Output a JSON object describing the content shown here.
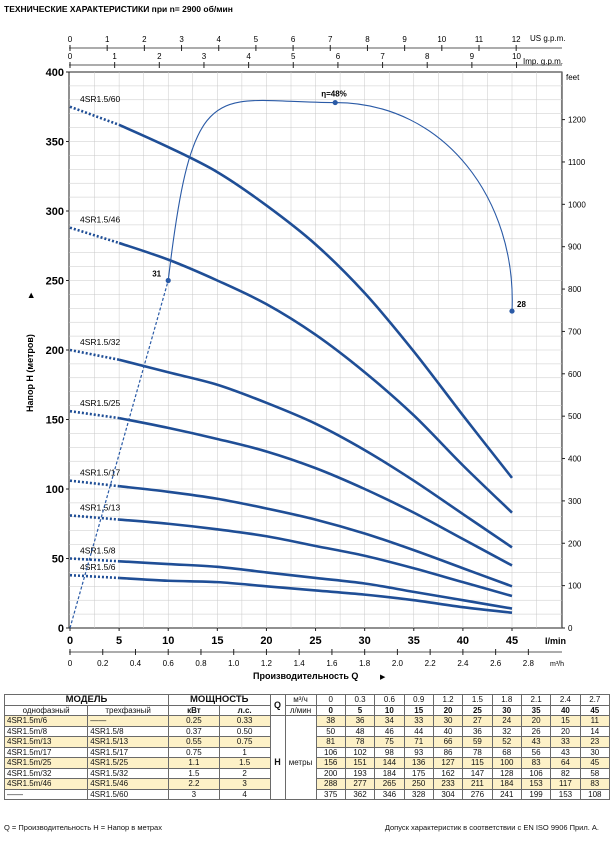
{
  "chart_data": {
    "type": "line",
    "title": "ТЕХНИЧЕСКИЕ ХАРАКТЕРИСТИКИ при n= 2900 об/мин",
    "ylabel": "Напор H  (метров)",
    "xlabel": "Производительность  Q",
    "xunit_main": "l/min",
    "xunit_m3": "m³/h",
    "top_unit_us": "US g.p.m.",
    "top_unit_imp": "Imp. g.p.m.",
    "right_unit": "feet",
    "xlim": [
      0,
      50
    ],
    "ylim": [
      0,
      400
    ],
    "x_ticks": [
      "0",
      "5",
      "10",
      "15",
      "20",
      "25",
      "30",
      "35",
      "40",
      "45"
    ],
    "y_ticks": [
      "0",
      "50",
      "100",
      "150",
      "200",
      "250",
      "300",
      "350",
      "400"
    ],
    "m3h_ticks": [
      "0",
      "0.2",
      "0.4",
      "0.6",
      "0.8",
      "1.0",
      "1.2",
      "1.4",
      "1.6",
      "1.8",
      "2.0",
      "2.2",
      "2.4",
      "2.6",
      "2.8"
    ],
    "us_gpm_ticks": [
      "0",
      "1",
      "2",
      "3",
      "4",
      "5",
      "6",
      "7",
      "8",
      "9",
      "10",
      "11",
      "12"
    ],
    "imp_gpm_ticks": [
      "0",
      "1",
      "2",
      "3",
      "4",
      "5",
      "6",
      "7",
      "8",
      "9",
      "10"
    ],
    "feet_ticks": [
      "0",
      "100",
      "200",
      "300",
      "400",
      "500",
      "600",
      "700",
      "800",
      "900",
      "1000",
      "1100",
      "1200"
    ],
    "x": [
      0,
      5,
      10,
      15,
      20,
      25,
      30,
      35,
      40,
      45
    ],
    "series": [
      {
        "name": "4SR1.5/6",
        "values": [
          38,
          36,
          34,
          33,
          30,
          27,
          24,
          20,
          15,
          11
        ]
      },
      {
        "name": "4SR1.5/8",
        "values": [
          50,
          48,
          46,
          44,
          40,
          36,
          32,
          26,
          20,
          14
        ]
      },
      {
        "name": "4SR1.5/13",
        "values": [
          81,
          78,
          75,
          71,
          66,
          59,
          52,
          43,
          33,
          23
        ]
      },
      {
        "name": "4SR1.5/17",
        "values": [
          106,
          102,
          98,
          93,
          86,
          78,
          68,
          56,
          43,
          30
        ]
      },
      {
        "name": "4SR1.5/25",
        "values": [
          156,
          151,
          144,
          136,
          127,
          115,
          100,
          83,
          64,
          45
        ]
      },
      {
        "name": "4SR1.5/32",
        "values": [
          200,
          193,
          184,
          175,
          162,
          147,
          128,
          106,
          82,
          58
        ]
      },
      {
        "name": "4SR1.5/46",
        "values": [
          288,
          277,
          265,
          250,
          233,
          211,
          184,
          153,
          117,
          83
        ]
      },
      {
        "name": "4SR1.5/60",
        "values": [
          375,
          362,
          346,
          328,
          304,
          276,
          241,
          199,
          153,
          108
        ]
      }
    ],
    "efficiency_curve": {
      "label": "η=48%",
      "points": [
        [
          0,
          0
        ],
        [
          10,
          250
        ],
        [
          27,
          378
        ],
        [
          45,
          228
        ]
      ],
      "annotations": [
        {
          "label": "31",
          "x": 10,
          "y": 250
        },
        {
          "label": "28",
          "x": 45,
          "y": 228
        }
      ]
    },
    "grid": true
  },
  "table": {
    "header_model": "МОДЕЛЬ",
    "header_power": "МОЩНОСТЬ",
    "col_single": "однофазный",
    "col_three": "трехфазный",
    "unit_kw": "кВт",
    "unit_hp": "л.с.",
    "q_label": "Q",
    "unit_m3h": "м³/ч",
    "unit_lmin": "л/мин",
    "h_label": "H",
    "h_unit": "метры",
    "m3h_values": [
      "0",
      "0.3",
      "0.6",
      "0.9",
      "1.2",
      "1.5",
      "1.8",
      "2.1",
      "2.4",
      "2.7"
    ],
    "lmin_values": [
      "0",
      "5",
      "10",
      "15",
      "20",
      "25",
      "30",
      "35",
      "40",
      "45"
    ],
    "rows": [
      {
        "single": "4SR1.5m/6",
        "three": "——",
        "kw": "0.25",
        "hp": "0.33",
        "h": [
          "38",
          "36",
          "34",
          "33",
          "30",
          "27",
          "24",
          "20",
          "15",
          "11"
        ]
      },
      {
        "single": "4SR1.5m/8",
        "three": "4SR1.5/8",
        "kw": "0.37",
        "hp": "0.50",
        "h": [
          "50",
          "48",
          "46",
          "44",
          "40",
          "36",
          "32",
          "26",
          "20",
          "14"
        ]
      },
      {
        "single": "4SR1.5m/13",
        "three": "4SR1.5/13",
        "kw": "0.55",
        "hp": "0.75",
        "h": [
          "81",
          "78",
          "75",
          "71",
          "66",
          "59",
          "52",
          "43",
          "33",
          "23"
        ]
      },
      {
        "single": "4SR1.5m/17",
        "three": "4SR1.5/17",
        "kw": "0.75",
        "hp": "1",
        "h": [
          "106",
          "102",
          "98",
          "93",
          "86",
          "78",
          "68",
          "56",
          "43",
          "30"
        ]
      },
      {
        "single": "4SR1.5m/25",
        "three": "4SR1.5/25",
        "kw": "1.1",
        "hp": "1.5",
        "h": [
          "156",
          "151",
          "144",
          "136",
          "127",
          "115",
          "100",
          "83",
          "64",
          "45"
        ]
      },
      {
        "single": "4SR1.5m/32",
        "three": "4SR1.5/32",
        "kw": "1.5",
        "hp": "2",
        "h": [
          "200",
          "193",
          "184",
          "175",
          "162",
          "147",
          "128",
          "106",
          "82",
          "58"
        ]
      },
      {
        "single": "4SR1.5m/46",
        "three": "4SR1.5/46",
        "kw": "2.2",
        "hp": "3",
        "h": [
          "288",
          "277",
          "265",
          "250",
          "233",
          "211",
          "184",
          "153",
          "117",
          "83"
        ]
      },
      {
        "single": "——",
        "three": "4SR1.5/60",
        "kw": "3",
        "hp": "4",
        "h": [
          "375",
          "362",
          "346",
          "328",
          "304",
          "276",
          "241",
          "199",
          "153",
          "108"
        ]
      }
    ]
  },
  "footer": {
    "left": "Q = Производительность    H = Напор в метрах",
    "right": "Допуск характеристик в соответствии с EN ISO 9906 Прил.  A."
  },
  "colors": {
    "curve": "#1f4e96",
    "efficiency": "#2a5aa6",
    "highlight": "#fdf1c7"
  }
}
